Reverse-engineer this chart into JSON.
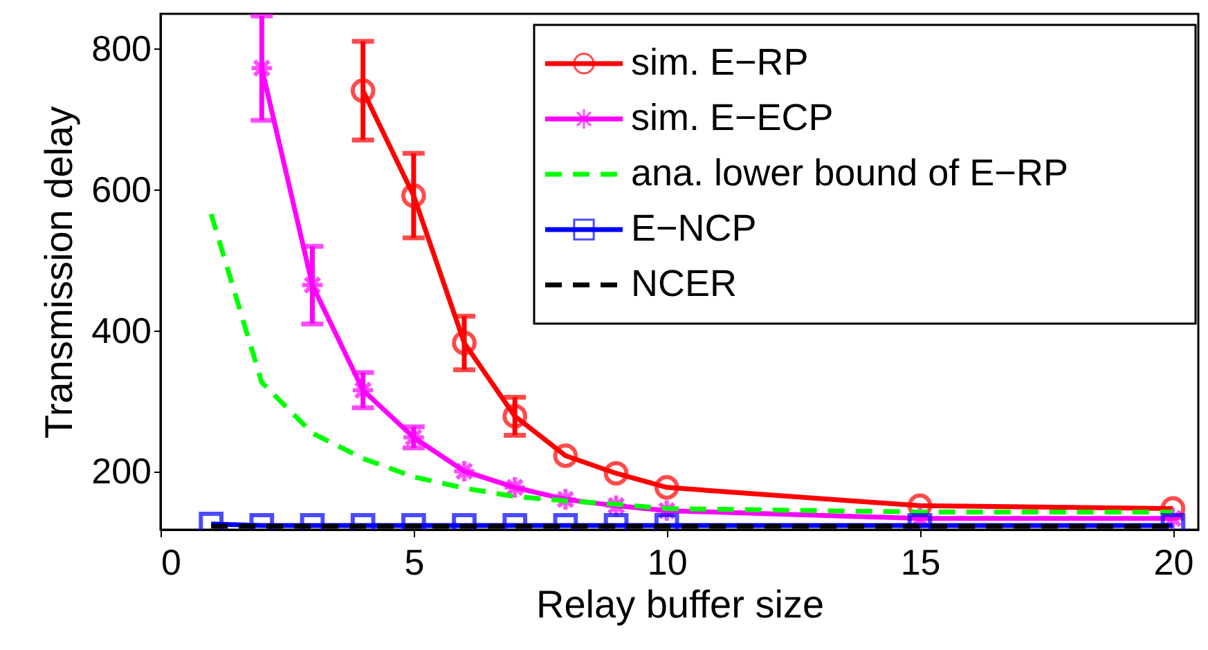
{
  "chart_data": {
    "type": "line",
    "xlabel": "Relay buffer size",
    "ylabel": "Transmission delay",
    "xlim": [
      0,
      20.5
    ],
    "ylim": [
      118,
      850
    ],
    "xticks": [
      0,
      5,
      10,
      15,
      20
    ],
    "yticks": [
      200,
      400,
      600,
      800
    ],
    "grid": false,
    "legend": "top right",
    "series": [
      {
        "name": "sim. E−RP",
        "color": "#ff0000",
        "marker": "circle",
        "line_style": "solid",
        "x": [
          4,
          5,
          6,
          7,
          8,
          9,
          10,
          15,
          20
        ],
        "values": [
          741,
          592,
          383,
          279,
          223,
          198,
          178,
          152,
          148
        ],
        "errors": [
          70,
          60,
          38,
          27,
          null,
          null,
          null,
          null,
          null
        ]
      },
      {
        "name": "sim. E−ECP",
        "color": "#ff00ff",
        "marker": "cross",
        "line_style": "solid",
        "x": [
          2,
          3,
          4,
          5,
          6,
          7,
          8,
          9,
          10,
          15,
          20
        ],
        "values": [
          773,
          465,
          316,
          249,
          201,
          178,
          161,
          152,
          145,
          134,
          134
        ],
        "errors": [
          74,
          55,
          25,
          15,
          null,
          null,
          null,
          null,
          null,
          null,
          null
        ]
      },
      {
        "name": "ana. lower bound of E−RP",
        "color": "#00ff00",
        "marker": "none",
        "line_style": "dashed",
        "x": [
          1,
          2,
          3,
          4,
          5,
          6,
          7,
          8,
          9,
          10,
          15,
          20
        ],
        "values": [
          566,
          327,
          255,
          219,
          193,
          177,
          165,
          159,
          154,
          148,
          143,
          143
        ]
      },
      {
        "name": "E−NCP",
        "color": "#0000ff",
        "marker": "square",
        "line_style": "solid",
        "x": [
          1,
          2,
          3,
          4,
          5,
          6,
          7,
          8,
          9,
          10,
          15,
          20
        ],
        "values": [
          126,
          124,
          124,
          124,
          124,
          124,
          124,
          124,
          124,
          124,
          124,
          124
        ]
      },
      {
        "name": "NCER",
        "color": "#000000",
        "marker": "none",
        "line_style": "dashed",
        "x": [
          1,
          2,
          3,
          4,
          5,
          6,
          7,
          8,
          9,
          10,
          15,
          20
        ],
        "values": [
          123,
          123,
          123,
          123,
          123,
          123,
          123,
          123,
          123,
          123,
          123,
          123
        ]
      }
    ]
  }
}
